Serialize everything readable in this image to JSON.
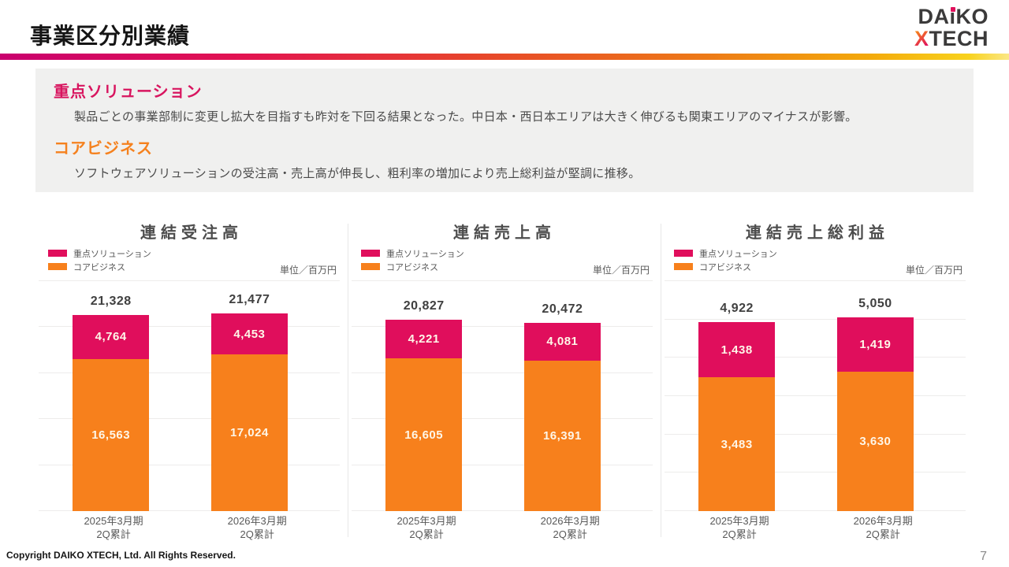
{
  "slide": {
    "title": "事業区分別業績",
    "footer": "Copyright DAIKO XTECH, Ltd. All Rights Reserved.",
    "page_number": "7"
  },
  "logo": {
    "line1_pre": "DA",
    "line1_i": "ı",
    "line1_post": "KO",
    "line2_x": "X",
    "line2_rest": "TECH"
  },
  "summary": {
    "items": [
      {
        "heading": "重点ソリューション",
        "color": "#D8155F",
        "text": "製品ごとの事業部制に変更し拡大を目指すも昨対を下回る結果となった。中日本・西日本エリアは大きく伸びるも関東エリアのマイナスが影響。"
      },
      {
        "heading": "コアビジネス",
        "color": "#F5811E",
        "text": "ソフトウェアソリューションの受注高・売上高が伸長し、粗利率の増加により売上総利益が堅調に推移。"
      }
    ]
  },
  "colors": {
    "accent_pink": "#E00E5C",
    "accent_orange": "#F7801C"
  },
  "chart_data": [
    {
      "type": "bar",
      "stacked": true,
      "title": "連結受注高",
      "unit": "単位／百万円",
      "categories": [
        [
          "2025年3月期",
          "2Q累計"
        ],
        [
          "2026年3月期",
          "2Q累計"
        ]
      ],
      "series": [
        {
          "name": "重点ソリューション",
          "color": "#E00E5C",
          "values": [
            4764,
            4453
          ]
        },
        {
          "name": "コアビジネス",
          "color": "#F7801C",
          "values": [
            16563,
            17024
          ]
        }
      ],
      "totals": [
        21328,
        21477
      ],
      "ylim": [
        0,
        25000
      ],
      "grid_step": 5000,
      "legend_position": "top-left",
      "grid": true
    },
    {
      "type": "bar",
      "stacked": true,
      "title": "連結売上高",
      "unit": "単位／百万円",
      "categories": [
        [
          "2025年3月期",
          "2Q累計"
        ],
        [
          "2026年3月期",
          "2Q累計"
        ]
      ],
      "series": [
        {
          "name": "重点ソリューション",
          "color": "#E00E5C",
          "values": [
            4221,
            4081
          ]
        },
        {
          "name": "コアビジネス",
          "color": "#F7801C",
          "values": [
            16605,
            16391
          ]
        }
      ],
      "totals": [
        20827,
        20472
      ],
      "ylim": [
        0,
        25000
      ],
      "grid_step": 5000,
      "legend_position": "top-left",
      "grid": true
    },
    {
      "type": "bar",
      "stacked": true,
      "title": "連結売上総利益",
      "unit": "単位／百万円",
      "categories": [
        [
          "2025年3月期",
          "2Q累計"
        ],
        [
          "2026年3月期",
          "2Q累計"
        ]
      ],
      "series": [
        {
          "name": "重点ソリューション",
          "color": "#E00E5C",
          "values": [
            1438,
            1419
          ]
        },
        {
          "name": "コアビジネス",
          "color": "#F7801C",
          "values": [
            3483,
            3630
          ]
        }
      ],
      "totals": [
        4922,
        5050
      ],
      "ylim": [
        0,
        6000
      ],
      "grid_step": 1000,
      "legend_position": "top-left",
      "grid": true
    }
  ]
}
